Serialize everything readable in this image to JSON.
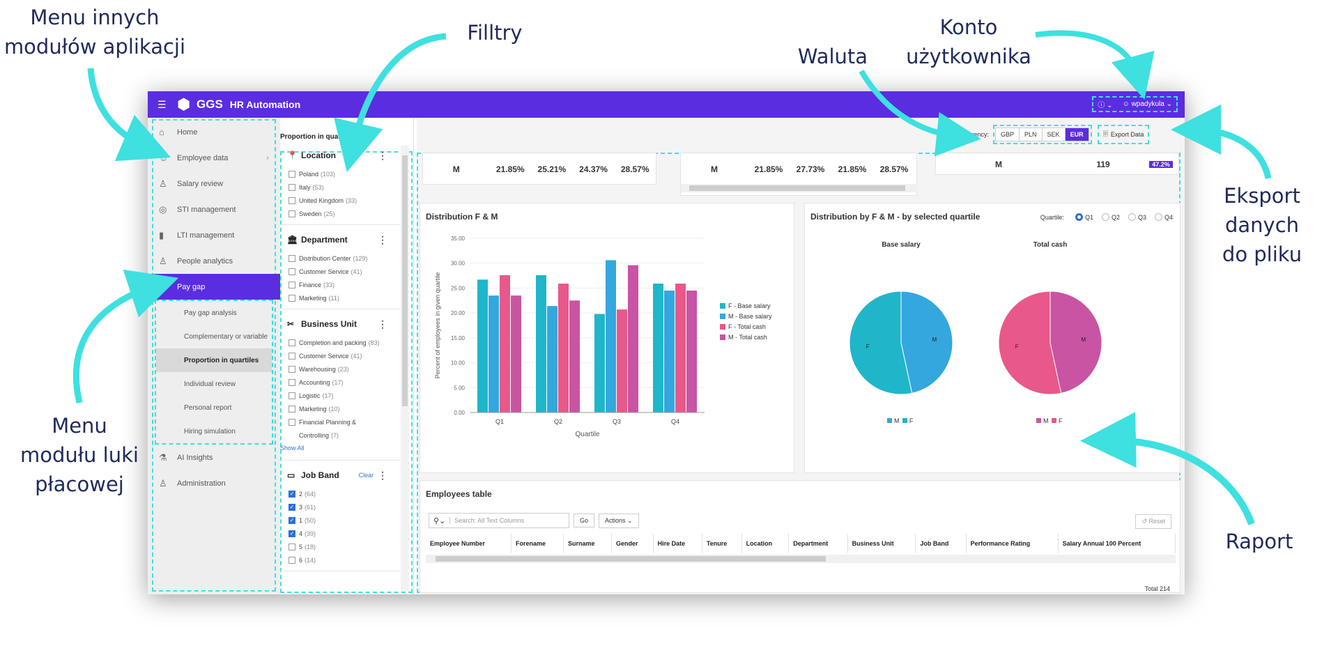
{
  "annotations": {
    "menu_other": "Menu  innych\nmodułów aplikacji",
    "filters": "Filltry",
    "currency": "Waluta",
    "account": "Konto\nużytkownika",
    "export": "Eksport danych\ndo pliku",
    "menu_paygap": "Menu\nmodułu luki\npłacowej",
    "report": "Raport"
  },
  "colors": {
    "brand": "#5b2de0",
    "annotation": "#3ee0e0",
    "f_base": "#1fb6c9",
    "m_base": "#33a7de",
    "f_total": "#e8588a",
    "m_total": "#c854a3"
  },
  "topbar": {
    "logo": "GGS",
    "app_name": "HR Automation",
    "user": "wpadykula",
    "help_icon": "help-icon"
  },
  "nav": {
    "items": [
      {
        "label": "Home",
        "icon": "home-icon"
      },
      {
        "label": "Employee data",
        "icon": "users-icon"
      },
      {
        "label": "Salary review",
        "icon": "salary-icon"
      },
      {
        "label": "STI management",
        "icon": "target-icon"
      },
      {
        "label": "LTI management",
        "icon": "chart-icon"
      },
      {
        "label": "People analytics",
        "icon": "person-search-icon"
      },
      {
        "label": "Pay gap",
        "icon": "scale-icon"
      }
    ],
    "sub_items": [
      "Pay gap analysis",
      "Complementary or variable",
      "Proportion in quartiles",
      "Individual review",
      "Personal report",
      "Hiring simulation"
    ],
    "bottom_items": [
      {
        "label": "AI Insights",
        "icon": "flask-icon"
      },
      {
        "label": "Administration",
        "icon": "admin-icon"
      }
    ]
  },
  "page": {
    "title": "Proportion in quartiles"
  },
  "filters": {
    "location": {
      "title": "Location",
      "options": [
        {
          "label": "Poland",
          "count": "(103)"
        },
        {
          "label": "Italy",
          "count": "(53)"
        },
        {
          "label": "United Kingdom",
          "count": "(33)"
        },
        {
          "label": "Sweden",
          "count": "(25)"
        }
      ]
    },
    "department": {
      "title": "Department",
      "options": [
        {
          "label": "Distribution Center",
          "count": "(129)"
        },
        {
          "label": "Customer Service",
          "count": "(41)"
        },
        {
          "label": "Finance",
          "count": "(33)"
        },
        {
          "label": "Marketing",
          "count": "(11)"
        }
      ]
    },
    "business_unit": {
      "title": "Business Unit",
      "options": [
        {
          "label": "Completion and packing",
          "count": "(83)"
        },
        {
          "label": "Customer Service",
          "count": "(41)"
        },
        {
          "label": "Warehousing",
          "count": "(23)"
        },
        {
          "label": "Accounting",
          "count": "(17)"
        },
        {
          "label": "Logistic",
          "count": "(17)"
        },
        {
          "label": "Marketing",
          "count": "(10)"
        },
        {
          "label": "Financial Planning &",
          "count": ""
        },
        {
          "label": "Controlling",
          "count": "(7)"
        }
      ],
      "show_all": "Show All"
    },
    "job_band": {
      "title": "Job Band",
      "clear": "Clear",
      "options": [
        {
          "label": "2",
          "count": "(64)",
          "checked": true
        },
        {
          "label": "3",
          "count": "(61)",
          "checked": true
        },
        {
          "label": "1",
          "count": "(50)",
          "checked": true
        },
        {
          "label": "4",
          "count": "(39)",
          "checked": true
        },
        {
          "label": "5",
          "count": "(18)",
          "checked": false
        },
        {
          "label": "6",
          "count": "(14)",
          "checked": false
        }
      ]
    }
  },
  "currency": {
    "label": "Currency:",
    "options": [
      "GBP",
      "PLN",
      "SEK",
      "EUR"
    ],
    "selected": "EUR",
    "export": "Export Data"
  },
  "summary": {
    "row1": [
      "M",
      "21.85%",
      "25.21%",
      "24.37%",
      "28.57%"
    ],
    "row2": [
      "M",
      "21.85%",
      "27.73%",
      "21.85%",
      "28.57%"
    ],
    "row3": [
      "M",
      "119",
      "47.2%"
    ]
  },
  "chart_data": [
    {
      "type": "bar",
      "title": "Distribution F & M",
      "xlabel": "Quartile",
      "ylabel": "Percent of employees in given quartile",
      "categories": [
        "Q1",
        "Q2",
        "Q3",
        "Q4"
      ],
      "ylim": [
        0,
        35
      ],
      "yticks": [
        "0.00",
        "5.00",
        "10.00",
        "15.00",
        "20.00",
        "25.00",
        "30.00",
        "35.00"
      ],
      "series": [
        {
          "name": "F - Base salary",
          "values": [
            26.7,
            27.6,
            19.8,
            25.9
          ]
        },
        {
          "name": "M - Base salary",
          "values": [
            23.5,
            21.4,
            30.6,
            24.5
          ]
        },
        {
          "name": "F - Total cash",
          "values": [
            27.6,
            25.9,
            20.7,
            25.9
          ]
        },
        {
          "name": "M - Total cash",
          "values": [
            23.5,
            22.5,
            29.6,
            24.5
          ]
        }
      ],
      "legend": "right"
    },
    {
      "type": "pie",
      "title": "Distribution by F & M - by selected quartile",
      "quartile_label": "Quartile:",
      "quartiles": [
        "Q1",
        "Q2",
        "Q3",
        "Q4"
      ],
      "selected_quartile": "Q1",
      "pies": [
        {
          "title": "Base salary",
          "slices": [
            {
              "name": "M",
              "value": 46.6
            },
            {
              "name": "F",
              "value": 53.4
            }
          ]
        },
        {
          "title": "Total cash",
          "slices": [
            {
              "name": "M",
              "value": 46.6
            },
            {
              "name": "F",
              "value": 53.4
            }
          ]
        }
      ]
    }
  ],
  "table": {
    "title": "Employees table",
    "search_placeholder": "Search: All Text Columns",
    "go": "Go",
    "actions": "Actions",
    "reset": "Reset",
    "columns": [
      "Employee Number",
      "Forename",
      "Surname",
      "Gender",
      "Hire Date",
      "Tenure",
      "Location",
      "Department",
      "Business Unit",
      "Job Band",
      "Performance Rating",
      "Salary Annual 100 Percent"
    ],
    "total": "Total 214"
  }
}
